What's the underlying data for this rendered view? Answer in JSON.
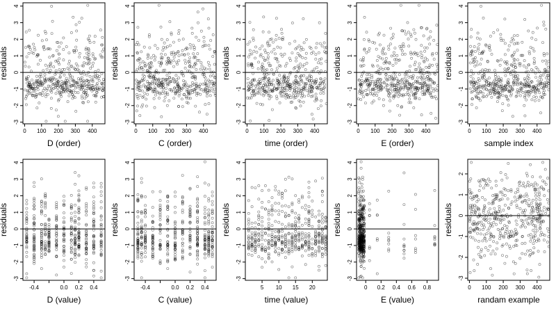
{
  "chart_data": [
    {
      "type": "scatter",
      "xlabel": "D (order)",
      "ylabel": "residuals",
      "xlim": [
        -10,
        475
      ],
      "ylim": [
        -3.1,
        4.2
      ],
      "xticks": [
        0,
        100,
        200,
        300,
        400
      ],
      "yticks": [
        -3,
        -2,
        -1,
        0,
        1,
        2,
        3,
        4
      ],
      "ref_line_y": 0,
      "n_points": 470,
      "x_range": [
        1,
        470
      ],
      "pattern": "order",
      "seed": 11
    },
    {
      "type": "scatter",
      "xlabel": "C (order)",
      "ylabel": "residuals",
      "xlim": [
        -10,
        475
      ],
      "ylim": [
        -3.1,
        4.2
      ],
      "xticks": [
        0,
        100,
        200,
        300,
        400
      ],
      "yticks": [
        -3,
        -2,
        -1,
        0,
        1,
        2,
        3,
        4
      ],
      "ref_line_y": 0,
      "n_points": 470,
      "x_range": [
        1,
        470
      ],
      "pattern": "order",
      "seed": 12
    },
    {
      "type": "scatter",
      "xlabel": "time (order)",
      "ylabel": "residuals",
      "xlim": [
        -10,
        475
      ],
      "ylim": [
        -3.1,
        4.2
      ],
      "xticks": [
        0,
        100,
        200,
        300,
        400
      ],
      "yticks": [
        -3,
        -2,
        -1,
        0,
        1,
        2,
        3,
        4
      ],
      "ref_line_y": 0,
      "n_points": 470,
      "x_range": [
        1,
        470
      ],
      "pattern": "order",
      "seed": 13
    },
    {
      "type": "scatter",
      "xlabel": "E (order)",
      "ylabel": "residuals",
      "xlim": [
        -10,
        475
      ],
      "ylim": [
        -3.1,
        4.2
      ],
      "xticks": [
        0,
        100,
        200,
        300,
        400
      ],
      "yticks": [
        -3,
        -2,
        -1,
        0,
        1,
        2,
        3,
        4
      ],
      "ref_line_y": 0,
      "n_points": 470,
      "x_range": [
        1,
        470
      ],
      "pattern": "order",
      "seed": 14
    },
    {
      "type": "scatter",
      "xlabel": "sample index",
      "ylabel": "residuals",
      "xlim": [
        -10,
        475
      ],
      "ylim": [
        -3.1,
        4.2
      ],
      "xticks": [
        0,
        100,
        200,
        300,
        400
      ],
      "yticks": [
        -3,
        -2,
        -1,
        0,
        1,
        2,
        3,
        4
      ],
      "ref_line_y": 0,
      "n_points": 470,
      "x_range": [
        1,
        470
      ],
      "pattern": "order",
      "seed": 15
    },
    {
      "type": "scatter",
      "xlabel": "D (value)",
      "ylabel": "residuals",
      "xlim": [
        -0.55,
        0.55
      ],
      "ylim": [
        -3.1,
        4.2
      ],
      "xticks": [
        -0.4,
        -0.2,
        0.0,
        0.2,
        0.4
      ],
      "xtick_labels": [
        "-0.4",
        "",
        "0.0",
        "0.2",
        "0.4"
      ],
      "yticks": [
        -3,
        -2,
        -1,
        0,
        1,
        2,
        3,
        4
      ],
      "ref_line_y": 0,
      "n_points": 470,
      "x_levels": [
        -0.5,
        -0.4,
        -0.3,
        -0.25,
        -0.2,
        -0.1,
        0.0,
        0.1,
        0.15,
        0.2,
        0.3,
        0.4,
        0.5
      ],
      "pattern": "discrete",
      "seed": 21
    },
    {
      "type": "scatter",
      "xlabel": "C (value)",
      "ylabel": "residuals",
      "xlim": [
        -0.55,
        0.55
      ],
      "ylim": [
        -3.1,
        4.2
      ],
      "xticks": [
        -0.4,
        -0.2,
        0.0,
        0.2,
        0.4
      ],
      "xtick_labels": [
        "-0.4",
        "",
        "0.0",
        "0.2",
        "0.4"
      ],
      "yticks": [
        -3,
        -2,
        -1,
        0,
        1,
        2,
        3,
        4
      ],
      "ref_line_y": 0,
      "n_points": 470,
      "x_levels": [
        -0.5,
        -0.45,
        -0.4,
        -0.3,
        -0.2,
        -0.1,
        0.0,
        0.1,
        0.2,
        0.3,
        0.4,
        0.45,
        0.5
      ],
      "pattern": "discrete",
      "seed": 22
    },
    {
      "type": "scatter",
      "xlabel": "time (value)",
      "ylabel": "residuals",
      "xlim": [
        0,
        24.5
      ],
      "ylim": [
        -3.1,
        4.2
      ],
      "xticks": [
        5,
        10,
        15,
        20
      ],
      "yticks": [
        -3,
        -2,
        -1,
        0,
        1,
        2,
        3,
        4
      ],
      "ref_line_y": 0,
      "n_points": 470,
      "x_levels": [
        1,
        2,
        3,
        4,
        5,
        6,
        7,
        8,
        9,
        10,
        11,
        12,
        13,
        14,
        15,
        16,
        17,
        18,
        19,
        20,
        21,
        22,
        23,
        24
      ],
      "pattern": "discrete",
      "seed": 23
    },
    {
      "type": "scatter",
      "xlabel": "E (value)",
      "ylabel": "residuals",
      "xlim": [
        -0.12,
        0.95
      ],
      "ylim": [
        -3.1,
        4.2
      ],
      "xticks": [
        0.0,
        0.2,
        0.4,
        0.6,
        0.8
      ],
      "yticks": [
        -3,
        -2,
        -1,
        0,
        1,
        2,
        3,
        4
      ],
      "ref_line_y": 0,
      "n_points": 470,
      "x_levels": [
        -0.09,
        -0.08,
        -0.07,
        -0.06,
        -0.05,
        -0.04,
        -0.03,
        -0.02,
        0.05,
        0.15,
        0.3,
        0.5,
        0.65,
        0.9
      ],
      "pattern": "skewed",
      "seed": 24
    },
    {
      "type": "scatter",
      "xlabel": "randam example",
      "ylabel": "residuals",
      "xlim": [
        -10,
        475
      ],
      "ylim": [
        -3.1,
        2.7
      ],
      "xticks": [
        0,
        100,
        200,
        300,
        400
      ],
      "yticks": [
        -3,
        -2,
        -1,
        0,
        1,
        2
      ],
      "ref_line_y": 0,
      "n_points": 470,
      "x_range": [
        1,
        470
      ],
      "pattern": "random",
      "seed": 25
    }
  ]
}
